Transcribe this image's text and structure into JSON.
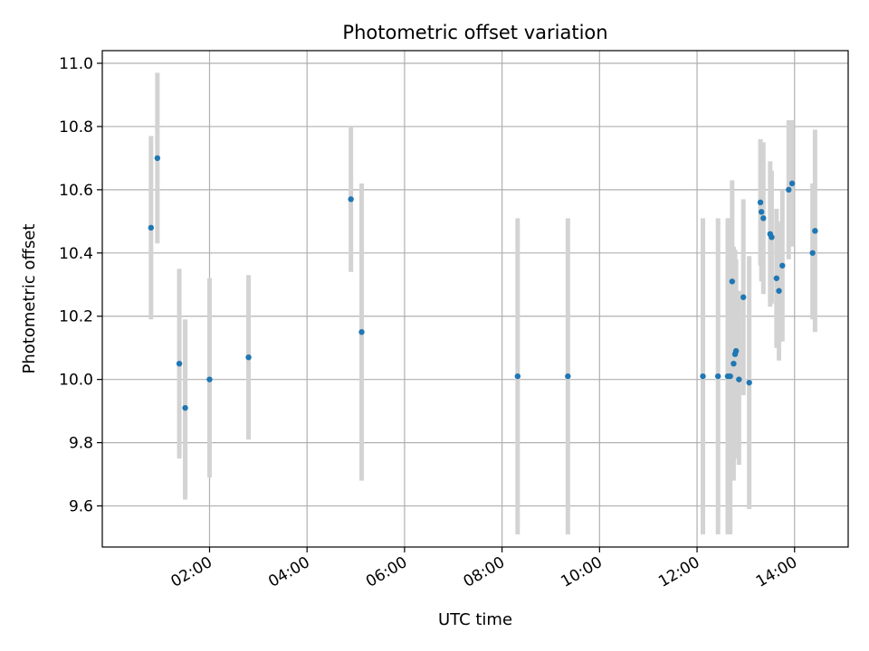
{
  "chart_data": {
    "type": "scatter",
    "title": "Photometric offset variation",
    "xlabel": "UTC time",
    "ylabel": "Photometric offset",
    "x_unit": "hours UTC",
    "xlim": [
      -0.2,
      15.1
    ],
    "ylim": [
      9.47,
      11.04
    ],
    "grid": true,
    "x_ticks": [
      {
        "value": 2,
        "label": "02:00"
      },
      {
        "value": 4,
        "label": "04:00"
      },
      {
        "value": 6,
        "label": "06:00"
      },
      {
        "value": 8,
        "label": "08:00"
      },
      {
        "value": 10,
        "label": "10:00"
      },
      {
        "value": 12,
        "label": "12:00"
      },
      {
        "value": 14,
        "label": "14:00"
      }
    ],
    "y_ticks": [
      {
        "value": 9.6,
        "label": "9.6"
      },
      {
        "value": 9.8,
        "label": "9.8"
      },
      {
        "value": 10.0,
        "label": "10.0"
      },
      {
        "value": 10.2,
        "label": "10.2"
      },
      {
        "value": 10.4,
        "label": "10.4"
      },
      {
        "value": 10.6,
        "label": "10.6"
      },
      {
        "value": 10.8,
        "label": "10.8"
      },
      {
        "value": 11.0,
        "label": "11.0"
      }
    ],
    "colors": {
      "points": "#1f77b4",
      "errorbars": "#d3d3d3",
      "grid": "#b0b0b0"
    },
    "points": [
      {
        "x": 0.8,
        "y": 10.48,
        "lo": 10.19,
        "hi": 10.77
      },
      {
        "x": 0.93,
        "y": 10.7,
        "lo": 10.43,
        "hi": 10.97
      },
      {
        "x": 1.38,
        "y": 10.05,
        "lo": 9.75,
        "hi": 10.35
      },
      {
        "x": 1.5,
        "y": 9.91,
        "lo": 9.62,
        "hi": 10.19
      },
      {
        "x": 2.0,
        "y": 10.0,
        "lo": 9.69,
        "hi": 10.32
      },
      {
        "x": 2.8,
        "y": 10.07,
        "lo": 9.81,
        "hi": 10.33
      },
      {
        "x": 4.9,
        "y": 10.57,
        "lo": 10.34,
        "hi": 10.8
      },
      {
        "x": 5.12,
        "y": 10.15,
        "lo": 9.68,
        "hi": 10.62
      },
      {
        "x": 8.32,
        "y": 10.01,
        "lo": 9.51,
        "hi": 10.51
      },
      {
        "x": 9.35,
        "y": 10.01,
        "lo": 9.51,
        "hi": 10.51
      },
      {
        "x": 12.12,
        "y": 10.01,
        "lo": 9.51,
        "hi": 10.51
      },
      {
        "x": 12.43,
        "y": 10.01,
        "lo": 9.51,
        "hi": 10.51
      },
      {
        "x": 12.63,
        "y": 10.01,
        "lo": 9.51,
        "hi": 10.51
      },
      {
        "x": 12.68,
        "y": 10.01,
        "lo": 9.51,
        "hi": 10.51
      },
      {
        "x": 12.72,
        "y": 10.31,
        "lo": 9.99,
        "hi": 10.63
      },
      {
        "x": 12.75,
        "y": 10.05,
        "lo": 9.68,
        "hi": 10.42
      },
      {
        "x": 12.78,
        "y": 10.08,
        "lo": 9.75,
        "hi": 10.41
      },
      {
        "x": 12.8,
        "y": 10.09,
        "lo": 9.8,
        "hi": 10.38
      },
      {
        "x": 12.86,
        "y": 10.0,
        "lo": 9.73,
        "hi": 10.28
      },
      {
        "x": 12.95,
        "y": 10.26,
        "lo": 9.95,
        "hi": 10.57
      },
      {
        "x": 13.07,
        "y": 9.99,
        "lo": 9.59,
        "hi": 10.39
      },
      {
        "x": 13.3,
        "y": 10.56,
        "lo": 10.36,
        "hi": 10.76
      },
      {
        "x": 13.32,
        "y": 10.53,
        "lo": 10.31,
        "hi": 10.75
      },
      {
        "x": 13.36,
        "y": 10.51,
        "lo": 10.27,
        "hi": 10.75
      },
      {
        "x": 13.5,
        "y": 10.46,
        "lo": 10.23,
        "hi": 10.69
      },
      {
        "x": 13.53,
        "y": 10.45,
        "lo": 10.24,
        "hi": 10.66
      },
      {
        "x": 13.63,
        "y": 10.32,
        "lo": 10.1,
        "hi": 10.54
      },
      {
        "x": 13.68,
        "y": 10.28,
        "lo": 10.06,
        "hi": 10.5
      },
      {
        "x": 13.75,
        "y": 10.36,
        "lo": 10.12,
        "hi": 10.6
      },
      {
        "x": 13.88,
        "y": 10.6,
        "lo": 10.38,
        "hi": 10.82
      },
      {
        "x": 13.95,
        "y": 10.62,
        "lo": 10.42,
        "hi": 10.82
      },
      {
        "x": 14.37,
        "y": 10.4,
        "lo": 10.19,
        "hi": 10.62
      },
      {
        "x": 14.42,
        "y": 10.47,
        "lo": 10.15,
        "hi": 10.79
      }
    ]
  }
}
